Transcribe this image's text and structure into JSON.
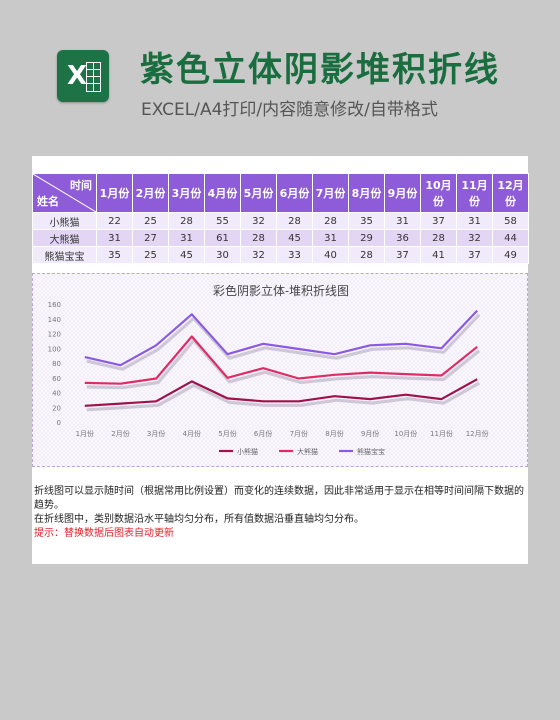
{
  "header": {
    "title": "紫色立体阴影堆积折线",
    "subtitle": "EXCEL/A4打印/内容随意修改/自带格式"
  },
  "table": {
    "corner_top": "时间",
    "corner_bottom": "姓名",
    "months": [
      "1月份",
      "2月份",
      "3月份",
      "4月份",
      "5月份",
      "6月份",
      "7月份",
      "8月份",
      "9月份",
      "10月份",
      "11月份",
      "12月份"
    ],
    "rows": [
      {
        "name": "小熊猫",
        "values": [
          22,
          25,
          28,
          55,
          32,
          28,
          28,
          35,
          31,
          37,
          31,
          58
        ]
      },
      {
        "name": "大熊猫",
        "values": [
          31,
          27,
          31,
          61,
          28,
          45,
          31,
          29,
          36,
          28,
          32,
          44
        ]
      },
      {
        "name": "熊猫宝宝",
        "values": [
          35,
          25,
          45,
          30,
          32,
          33,
          40,
          28,
          37,
          41,
          37,
          49
        ]
      }
    ]
  },
  "colors": {
    "header_purple": "#8e5bd9",
    "series": [
      "#a0124a",
      "#df2d64",
      "#8a5ae6"
    ]
  },
  "chart_data": {
    "type": "line",
    "stacked": true,
    "title": "彩色阴影立体-堆积折线图",
    "categories": [
      "1月份",
      "2月份",
      "3月份",
      "4月份",
      "5月份",
      "6月份",
      "7月份",
      "8月份",
      "9月份",
      "10月份",
      "11月份",
      "12月份"
    ],
    "series": [
      {
        "name": "小熊猫",
        "values": [
          22,
          25,
          28,
          55,
          32,
          28,
          28,
          35,
          31,
          37,
          31,
          58
        ]
      },
      {
        "name": "大熊猫",
        "values": [
          31,
          27,
          31,
          61,
          28,
          45,
          31,
          29,
          36,
          28,
          32,
          44
        ]
      },
      {
        "name": "熊猫宝宝",
        "values": [
          35,
          25,
          45,
          30,
          32,
          33,
          40,
          28,
          37,
          41,
          37,
          49
        ]
      }
    ],
    "yticks": [
      0,
      20,
      40,
      60,
      80,
      100,
      120,
      140,
      160
    ],
    "ylim": [
      0,
      160
    ],
    "grid": false,
    "legend": "bottom"
  },
  "notes": {
    "line1": "折线图可以显示随时间（根据常用比例设置）而变化的连续数据，因此非常适用于显示在相等时间间隔下数据的趋势。",
    "line2": "在折线图中，类别数据沿水平轴均匀分布，所有值数据沿垂直轴均匀分布。",
    "tip": "提示：替换数据后图表自动更新"
  }
}
